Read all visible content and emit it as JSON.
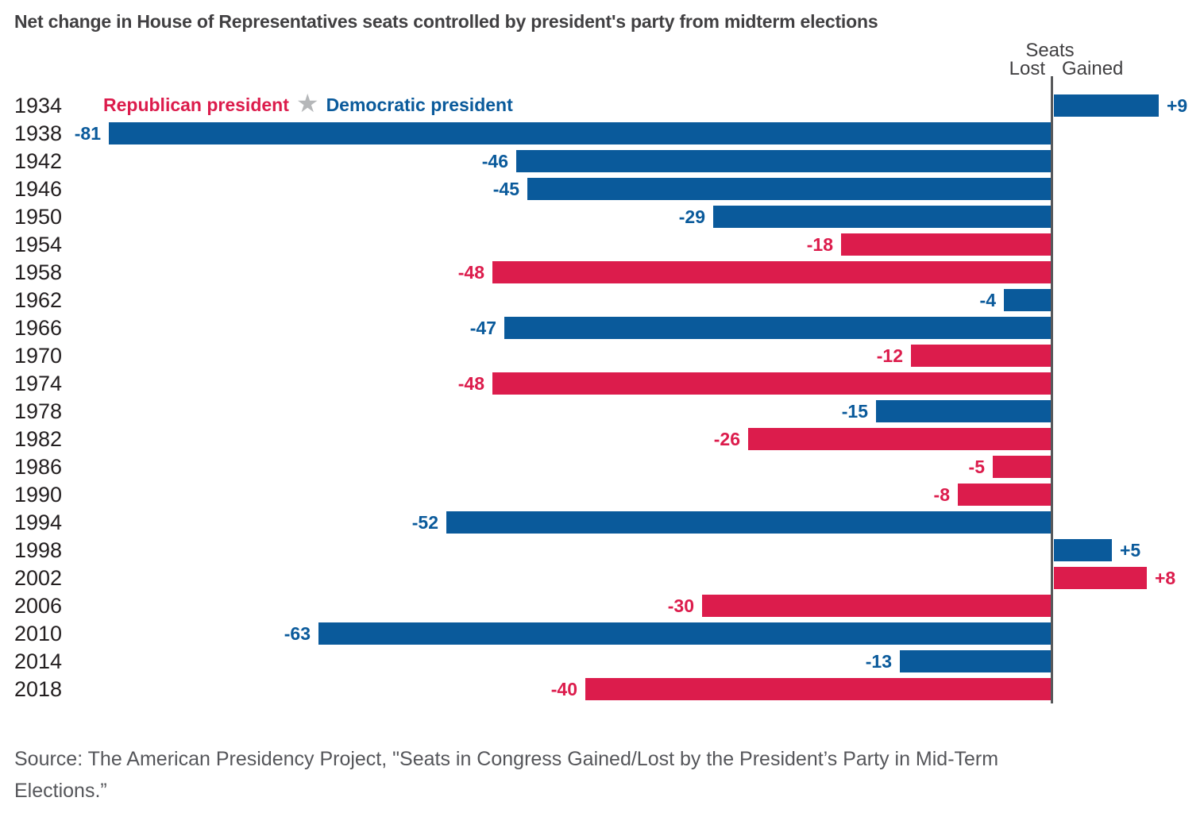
{
  "title": "Net change in House of Representatives seats controlled by president's party from midterm elections",
  "legend": {
    "republican_label": "Republican president",
    "democratic_label": "Democratic president",
    "star_icon": "★"
  },
  "axis": {
    "seats_label": "Seats",
    "lost_label": "Lost",
    "gained_label": "Gained"
  },
  "source": {
    "line1": "Source: The American Presidency Project, \"Seats in Congress Gained/Lost by the President’s Party in Mid-Term",
    "line2": "Elections.”"
  },
  "colors": {
    "republican": "#dc1c4c",
    "democratic": "#0a5a9b",
    "axis_line": "#58595b",
    "title_text": "#414042",
    "year_text": "#231f20",
    "source_text": "#55565a",
    "star": "#b5b7b9"
  },
  "chart_data": {
    "type": "bar",
    "orientation": "horizontal",
    "title": "Net change in House of Representatives seats controlled by president's party from midterm elections",
    "categories": [
      "1934",
      "1938",
      "1942",
      "1946",
      "1950",
      "1954",
      "1958",
      "1962",
      "1966",
      "1970",
      "1974",
      "1978",
      "1982",
      "1986",
      "1990",
      "1994",
      "1998",
      "2002",
      "2006",
      "2010",
      "2014",
      "2018"
    ],
    "rows": [
      {
        "year": "1934",
        "value": 9,
        "label": "+9",
        "party": "democratic"
      },
      {
        "year": "1938",
        "value": -81,
        "label": "-81",
        "party": "democratic"
      },
      {
        "year": "1942",
        "value": -46,
        "label": "-46",
        "party": "democratic"
      },
      {
        "year": "1946",
        "value": -45,
        "label": "-45",
        "party": "democratic"
      },
      {
        "year": "1950",
        "value": -29,
        "label": "-29",
        "party": "democratic"
      },
      {
        "year": "1954",
        "value": -18,
        "label": "-18",
        "party": "republican"
      },
      {
        "year": "1958",
        "value": -48,
        "label": "-48",
        "party": "republican"
      },
      {
        "year": "1962",
        "value": -4,
        "label": "-4",
        "party": "democratic"
      },
      {
        "year": "1966",
        "value": -47,
        "label": "-47",
        "party": "democratic"
      },
      {
        "year": "1970",
        "value": -12,
        "label": "-12",
        "party": "republican"
      },
      {
        "year": "1974",
        "value": -48,
        "label": "-48",
        "party": "republican"
      },
      {
        "year": "1978",
        "value": -15,
        "label": "-15",
        "party": "democratic"
      },
      {
        "year": "1982",
        "value": -26,
        "label": "-26",
        "party": "republican"
      },
      {
        "year": "1986",
        "value": -5,
        "label": "-5",
        "party": "republican"
      },
      {
        "year": "1990",
        "value": -8,
        "label": "-8",
        "party": "republican"
      },
      {
        "year": "1994",
        "value": -52,
        "label": "-52",
        "party": "democratic"
      },
      {
        "year": "1998",
        "value": 5,
        "label": "+5",
        "party": "democratic"
      },
      {
        "year": "2002",
        "value": 8,
        "label": "+8",
        "party": "republican"
      },
      {
        "year": "2006",
        "value": -30,
        "label": "-30",
        "party": "republican"
      },
      {
        "year": "2010",
        "value": -63,
        "label": "-63",
        "party": "democratic"
      },
      {
        "year": "2014",
        "value": -13,
        "label": "-13",
        "party": "democratic"
      },
      {
        "year": "2018",
        "value": -40,
        "label": "-40",
        "party": "republican"
      }
    ],
    "value_range": [
      -81,
      9
    ],
    "baseline": 0,
    "grid": false,
    "legend_position": "top-left inside plot, first row",
    "value_labels": "at outer end of each bar, colored to match bar"
  }
}
